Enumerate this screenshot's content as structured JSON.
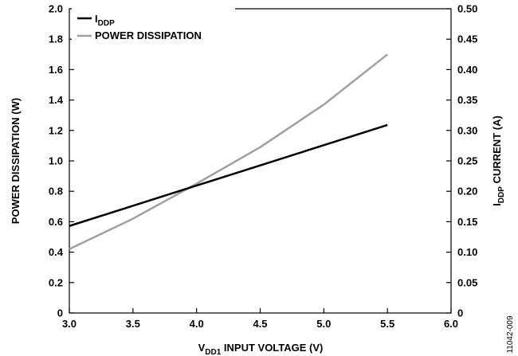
{
  "chart_data": {
    "type": "line",
    "x_axis": {
      "label_main": "V",
      "label_sub": "DD1",
      "label_rest": " INPUT VOLTAGE (V)",
      "min": 3.0,
      "max": 6.0,
      "ticks": [
        "3.0",
        "3.5",
        "4.0",
        "4.5",
        "5.0",
        "5.5",
        "6.0"
      ]
    },
    "y_left": {
      "label": "POWER DISSIPATION (W)",
      "min": 0,
      "max": 2.0,
      "ticks": [
        "0",
        "0.2",
        "0.4",
        "0.6",
        "0.8",
        "1.0",
        "1.2",
        "1.4",
        "1.6",
        "1.8",
        "2.0"
      ]
    },
    "y_right": {
      "label_main": "I",
      "label_sub": "DDP",
      "label_rest": " CURRENT (A)",
      "min": 0,
      "max": 0.5,
      "ticks": [
        "0",
        "0.05",
        "0.10",
        "0.15",
        "0.20",
        "0.25",
        "0.30",
        "0.35",
        "0.40",
        "0.45",
        "0.50"
      ]
    },
    "series": [
      {
        "name_main": "I",
        "name_sub": "DDP",
        "axis": "right",
        "color": "#000000",
        "x": [
          3.0,
          5.5
        ],
        "y": [
          0.143,
          0.309
        ]
      },
      {
        "name": "POWER DISSIPATION",
        "axis": "left",
        "color": "#a0a0a0",
        "x": [
          3.0,
          3.5,
          4.0,
          4.5,
          5.0,
          5.5
        ],
        "y": [
          0.42,
          0.62,
          0.85,
          1.09,
          1.37,
          1.7
        ]
      }
    ],
    "legend_position": "top-left",
    "grid": false
  },
  "figure_id": "11042-009"
}
